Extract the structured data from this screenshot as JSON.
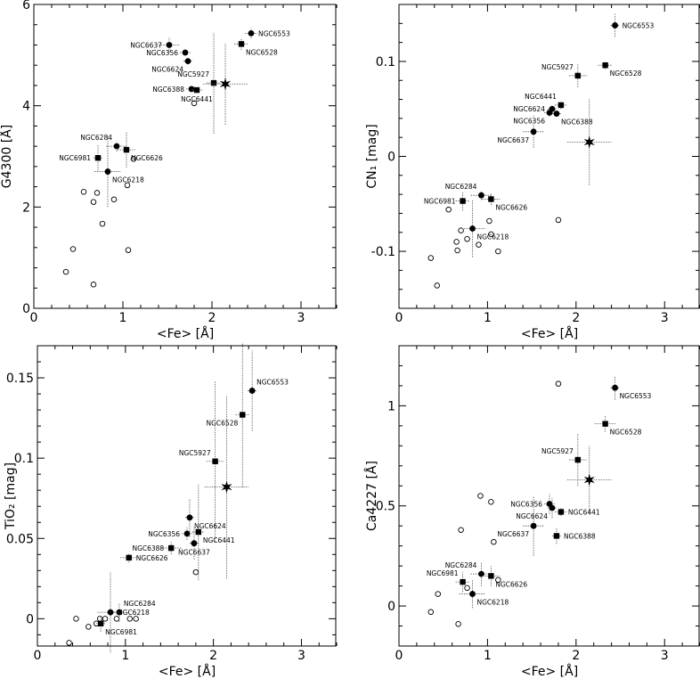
{
  "chart_data": [
    {
      "type": "scatter",
      "ylabel": "G4300 [Å]",
      "xlabel": "<Fe> [Å]",
      "xlim": [
        0,
        3.4
      ],
      "ylim": [
        0,
        6
      ],
      "xticks": [
        "0",
        "1",
        "2",
        "3"
      ],
      "xtick_values": [
        0,
        1,
        2,
        3
      ],
      "yticks": [
        "0",
        "2",
        "4",
        "6"
      ],
      "ytick_values": [
        0,
        2,
        4,
        6
      ],
      "clusters": [
        {
          "name": "NGC6553",
          "x": 2.44,
          "y": 5.43,
          "xerr": 0.07,
          "yerr": 0.1,
          "marker": "circle",
          "label_pos": "right"
        },
        {
          "name": "NGC6528",
          "x": 2.33,
          "y": 5.22,
          "xerr": 0.08,
          "yerr": 0.12,
          "marker": "square",
          "label_pos": "right-below"
        },
        {
          "name": "NGC6637",
          "x": 1.52,
          "y": 5.2,
          "xerr": 0.12,
          "yerr": 0.15,
          "marker": "circle",
          "label_pos": "left"
        },
        {
          "name": "NGC6356",
          "x": 1.7,
          "y": 5.05,
          "xerr": 0.06,
          "yerr": 0.06,
          "marker": "circle",
          "label_pos": "left"
        },
        {
          "name": "NGC6624",
          "x": 1.73,
          "y": 4.88,
          "xerr": 0.05,
          "yerr": 0.06,
          "marker": "circle",
          "label_pos": "left-below"
        },
        {
          "name": "NGC5927",
          "x": 2.02,
          "y": 4.45,
          "xerr": 0.08,
          "yerr": 1.0,
          "marker": "square",
          "label_pos": "left-above"
        },
        {
          "name": "NGC6388",
          "x": 1.77,
          "y": 4.33,
          "xerr": 0.06,
          "yerr": 0.05,
          "marker": "circle",
          "label_pos": "left"
        },
        {
          "name": "NGC6441",
          "x": 1.83,
          "y": 4.31,
          "xerr": 0.06,
          "yerr": 0.05,
          "marker": "square",
          "label_pos": "below"
        },
        {
          "name": "",
          "x": 2.15,
          "y": 4.43,
          "xerr": 0.25,
          "yerr": 0.8,
          "marker": "star",
          "label_pos": "none"
        },
        {
          "name": "NGC6284",
          "x": 0.93,
          "y": 3.2,
          "xerr": 0.12,
          "yerr": 0.1,
          "marker": "circle",
          "label_pos": "left-above"
        },
        {
          "name": "NGC6626",
          "x": 1.04,
          "y": 3.13,
          "xerr": 0.1,
          "yerr": 0.35,
          "marker": "square",
          "label_pos": "right-below"
        },
        {
          "name": "NGC6981",
          "x": 0.72,
          "y": 2.97,
          "xerr": 0.05,
          "yerr": 0.25,
          "marker": "square",
          "label_pos": "left"
        },
        {
          "name": "NGC6218",
          "x": 0.83,
          "y": 2.7,
          "xerr": 0.15,
          "yerr": 0.7,
          "marker": "circle",
          "label_pos": "right-below"
        }
      ],
      "open_points": [
        {
          "x": 0.36,
          "y": 0.72
        },
        {
          "x": 0.44,
          "y": 1.17
        },
        {
          "x": 0.56,
          "y": 2.3
        },
        {
          "x": 0.67,
          "y": 2.1
        },
        {
          "x": 0.71,
          "y": 2.28
        },
        {
          "x": 0.67,
          "y": 0.47
        },
        {
          "x": 0.77,
          "y": 1.67
        },
        {
          "x": 0.9,
          "y": 2.15
        },
        {
          "x": 1.05,
          "y": 2.43
        },
        {
          "x": 1.06,
          "y": 1.15
        },
        {
          "x": 1.12,
          "y": 2.95
        },
        {
          "x": 1.8,
          "y": 4.05
        }
      ]
    },
    {
      "type": "scatter",
      "ylabel": "CN₁ [mag]",
      "xlabel": "<Fe> [Å]",
      "xlim": [
        0,
        3.4
      ],
      "ylim": [
        -0.16,
        0.16
      ],
      "xticks": [
        "0",
        "1",
        "2",
        "3"
      ],
      "xtick_values": [
        0,
        1,
        2,
        3
      ],
      "yticks": [
        "-0.1",
        "0",
        "0.1"
      ],
      "ytick_values": [
        -0.1,
        0,
        0.1
      ],
      "clusters": [
        {
          "name": "NGC6553",
          "x": 2.44,
          "y": 0.138,
          "xerr": 0.05,
          "yerr": 0.012,
          "marker": "circle",
          "label_pos": "right"
        },
        {
          "name": "NGC6528",
          "x": 2.33,
          "y": 0.096,
          "xerr": 0.08,
          "yerr": 0.004,
          "marker": "square",
          "label_pos": "right-below"
        },
        {
          "name": "NGC5927",
          "x": 2.02,
          "y": 0.085,
          "xerr": 0.1,
          "yerr": 0.012,
          "marker": "square",
          "label_pos": "left-above"
        },
        {
          "name": "NGC6441",
          "x": 1.83,
          "y": 0.054,
          "xerr": 0.07,
          "yerr": 0.004,
          "marker": "square",
          "label_pos": "left-above"
        },
        {
          "name": "NGC6624",
          "x": 1.73,
          "y": 0.05,
          "xerr": 0.05,
          "yerr": 0.004,
          "marker": "circle",
          "label_pos": "left"
        },
        {
          "name": "NGC6356",
          "x": 1.7,
          "y": 0.046,
          "xerr": 0.06,
          "yerr": 0.004,
          "marker": "circle",
          "label_pos": "left-below"
        },
        {
          "name": "NGC6388",
          "x": 1.78,
          "y": 0.045,
          "xerr": 0.05,
          "yerr": 0.003,
          "marker": "circle",
          "label_pos": "right-below"
        },
        {
          "name": "NGC6637",
          "x": 1.52,
          "y": 0.026,
          "xerr": 0.12,
          "yerr": 0.017,
          "marker": "circle",
          "label_pos": "left-below"
        },
        {
          "name": "",
          "x": 2.15,
          "y": 0.015,
          "xerr": 0.25,
          "yerr": 0.045,
          "marker": "star",
          "label_pos": "none"
        },
        {
          "name": "NGC6284",
          "x": 0.93,
          "y": -0.041,
          "xerr": 0.12,
          "yerr": 0.005,
          "marker": "circle",
          "label_pos": "left-above"
        },
        {
          "name": "NGC6981",
          "x": 0.72,
          "y": -0.047,
          "xerr": 0.08,
          "yerr": 0.01,
          "marker": "square",
          "label_pos": "left"
        },
        {
          "name": "NGC6626",
          "x": 1.04,
          "y": -0.045,
          "xerr": 0.1,
          "yerr": 0.006,
          "marker": "square",
          "label_pos": "right-below"
        },
        {
          "name": "NGC6218",
          "x": 0.83,
          "y": -0.076,
          "xerr": 0.15,
          "yerr": 0.03,
          "marker": "circle",
          "label_pos": "right-below"
        }
      ],
      "open_points": [
        {
          "x": 0.36,
          "y": -0.107
        },
        {
          "x": 0.43,
          "y": -0.136
        },
        {
          "x": 0.56,
          "y": -0.056
        },
        {
          "x": 0.65,
          "y": -0.09
        },
        {
          "x": 0.66,
          "y": -0.099
        },
        {
          "x": 0.7,
          "y": -0.078
        },
        {
          "x": 0.77,
          "y": -0.087
        },
        {
          "x": 0.9,
          "y": -0.093
        },
        {
          "x": 1.02,
          "y": -0.068
        },
        {
          "x": 1.04,
          "y": -0.082
        },
        {
          "x": 1.12,
          "y": -0.1
        },
        {
          "x": 1.8,
          "y": -0.067
        }
      ]
    },
    {
      "type": "scatter",
      "ylabel": "TiO₂ [mag]",
      "xlabel": "<Fe> [Å]",
      "xlim": [
        0,
        3.4
      ],
      "ylim": [
        -0.017,
        0.17
      ],
      "xticks": [
        "0",
        "1",
        "2",
        "3"
      ],
      "xtick_values": [
        0,
        1,
        2,
        3
      ],
      "yticks": [
        "0",
        "0.05",
        "0.1",
        "0.15"
      ],
      "ytick_values": [
        0,
        0.05,
        0.1,
        0.15
      ],
      "clusters": [
        {
          "name": "NGC6553",
          "x": 2.44,
          "y": 0.142,
          "xerr": 0.05,
          "yerr": 0.025,
          "marker": "circle",
          "label_pos": "right-above"
        },
        {
          "name": "NGC6528",
          "x": 2.33,
          "y": 0.127,
          "xerr": 0.08,
          "yerr": 0.045,
          "marker": "square",
          "label_pos": "left-below"
        },
        {
          "name": "NGC5927",
          "x": 2.02,
          "y": 0.098,
          "xerr": 0.1,
          "yerr": 0.05,
          "marker": "square",
          "label_pos": "left-above"
        },
        {
          "name": "",
          "x": 2.15,
          "y": 0.082,
          "xerr": 0.25,
          "yerr": 0.057,
          "marker": "star",
          "label_pos": "none"
        },
        {
          "name": "NGC6624",
          "x": 1.73,
          "y": 0.063,
          "xerr": 0.05,
          "yerr": 0.012,
          "marker": "circle",
          "label_pos": "right-below"
        },
        {
          "name": "NGC6441",
          "x": 1.83,
          "y": 0.054,
          "xerr": 0.07,
          "yerr": 0.03,
          "marker": "square",
          "label_pos": "right-below"
        },
        {
          "name": "NGC6356",
          "x": 1.7,
          "y": 0.053,
          "xerr": 0.06,
          "yerr": 0.004,
          "marker": "circle",
          "label_pos": "left"
        },
        {
          "name": "NGC6388",
          "x": 1.52,
          "y": 0.044,
          "xerr": 0.12,
          "yerr": 0.004,
          "marker": "square",
          "label_pos": "left"
        },
        {
          "name": "NGC6637",
          "x": 1.78,
          "y": 0.047,
          "xerr": 0.05,
          "yerr": 0.01,
          "marker": "circle",
          "label_pos": "below"
        },
        {
          "name": "NGC6626",
          "x": 1.04,
          "y": 0.038,
          "xerr": 0.1,
          "yerr": 0.003,
          "marker": "square",
          "label_pos": "right"
        },
        {
          "name": "NGC6284",
          "x": 0.93,
          "y": 0.004,
          "xerr": 0.12,
          "yerr": 0.006,
          "marker": "circle",
          "label_pos": "right-above"
        },
        {
          "name": "NGC6218",
          "x": 0.83,
          "y": 0.004,
          "xerr": 0.15,
          "yerr": 0.025,
          "marker": "circle",
          "label_pos": "right"
        },
        {
          "name": "NGC6981",
          "x": 0.72,
          "y": -0.003,
          "xerr": 0.05,
          "yerr": 0.005,
          "marker": "square",
          "label_pos": "right-below"
        }
      ],
      "open_points": [
        {
          "x": 0.36,
          "y": -0.015
        },
        {
          "x": 0.44,
          "y": 0
        },
        {
          "x": 0.58,
          "y": -0.005
        },
        {
          "x": 0.67,
          "y": -0.003
        },
        {
          "x": 0.71,
          "y": 0
        },
        {
          "x": 0.77,
          "y": 0
        },
        {
          "x": 0.9,
          "y": 0
        },
        {
          "x": 1.05,
          "y": 0
        },
        {
          "x": 1.12,
          "y": 0
        },
        {
          "x": 1.8,
          "y": 0.029
        }
      ]
    },
    {
      "type": "scatter",
      "ylabel": "Ca4227 [Å]",
      "xlabel": "<Fe> [Å]",
      "xlim": [
        0,
        3.4
      ],
      "ylim": [
        -0.2,
        1.3
      ],
      "xticks": [
        "0",
        "1",
        "2",
        "3"
      ],
      "xtick_values": [
        0,
        1,
        2,
        3
      ],
      "yticks": [
        "0",
        "0.5",
        "1"
      ],
      "ytick_values": [
        0,
        0.5,
        1
      ],
      "clusters": [
        {
          "name": "NGC6553",
          "x": 2.44,
          "y": 1.09,
          "xerr": 0.05,
          "yerr": 0.06,
          "marker": "circle",
          "label_pos": "right-below"
        },
        {
          "name": "NGC6528",
          "x": 2.33,
          "y": 0.91,
          "xerr": 0.12,
          "yerr": 0.04,
          "marker": "square",
          "label_pos": "right-below"
        },
        {
          "name": "NGC5927",
          "x": 2.02,
          "y": 0.73,
          "xerr": 0.1,
          "yerr": 0.13,
          "marker": "square",
          "label_pos": "left-above"
        },
        {
          "name": "",
          "x": 2.15,
          "y": 0.63,
          "xerr": 0.25,
          "yerr": 0.17,
          "marker": "star",
          "label_pos": "none"
        },
        {
          "name": "NGC6356",
          "x": 1.7,
          "y": 0.51,
          "xerr": 0.06,
          "yerr": 0.05,
          "marker": "circle",
          "label_pos": "left"
        },
        {
          "name": "NGC6624",
          "x": 1.73,
          "y": 0.49,
          "xerr": 0.05,
          "yerr": 0.05,
          "marker": "circle",
          "label_pos": "left-below"
        },
        {
          "name": "NGC6441",
          "x": 1.83,
          "y": 0.47,
          "xerr": 0.07,
          "yerr": 0.02,
          "marker": "square",
          "label_pos": "right"
        },
        {
          "name": "NGC6637",
          "x": 1.52,
          "y": 0.4,
          "xerr": 0.12,
          "yerr": 0.15,
          "marker": "circle",
          "label_pos": "left-below"
        },
        {
          "name": "NGC6388",
          "x": 1.78,
          "y": 0.35,
          "xerr": 0.05,
          "yerr": 0.04,
          "marker": "square",
          "label_pos": "right"
        },
        {
          "name": "NGC6284",
          "x": 0.93,
          "y": 0.16,
          "xerr": 0.12,
          "yerr": 0.06,
          "marker": "circle",
          "label_pos": "left-above"
        },
        {
          "name": "NGC6981",
          "x": 0.72,
          "y": 0.12,
          "xerr": 0.08,
          "yerr": 0.05,
          "marker": "square",
          "label_pos": "left-above"
        },
        {
          "name": "NGC6626",
          "x": 1.04,
          "y": 0.15,
          "xerr": 0.1,
          "yerr": 0.05,
          "marker": "square",
          "label_pos": "right-below"
        },
        {
          "name": "NGC6218",
          "x": 0.83,
          "y": 0.06,
          "xerr": 0.15,
          "yerr": 0.07,
          "marker": "circle",
          "label_pos": "right-below"
        }
      ],
      "open_points": [
        {
          "x": 0.36,
          "y": -0.03
        },
        {
          "x": 0.44,
          "y": 0.06
        },
        {
          "x": 0.67,
          "y": -0.09
        },
        {
          "x": 0.7,
          "y": 0.38
        },
        {
          "x": 0.77,
          "y": 0.09
        },
        {
          "x": 0.92,
          "y": 0.55
        },
        {
          "x": 1.04,
          "y": 0.52
        },
        {
          "x": 1.07,
          "y": 0.32
        },
        {
          "x": 1.12,
          "y": 0.13
        },
        {
          "x": 1.8,
          "y": 1.11
        }
      ]
    }
  ]
}
